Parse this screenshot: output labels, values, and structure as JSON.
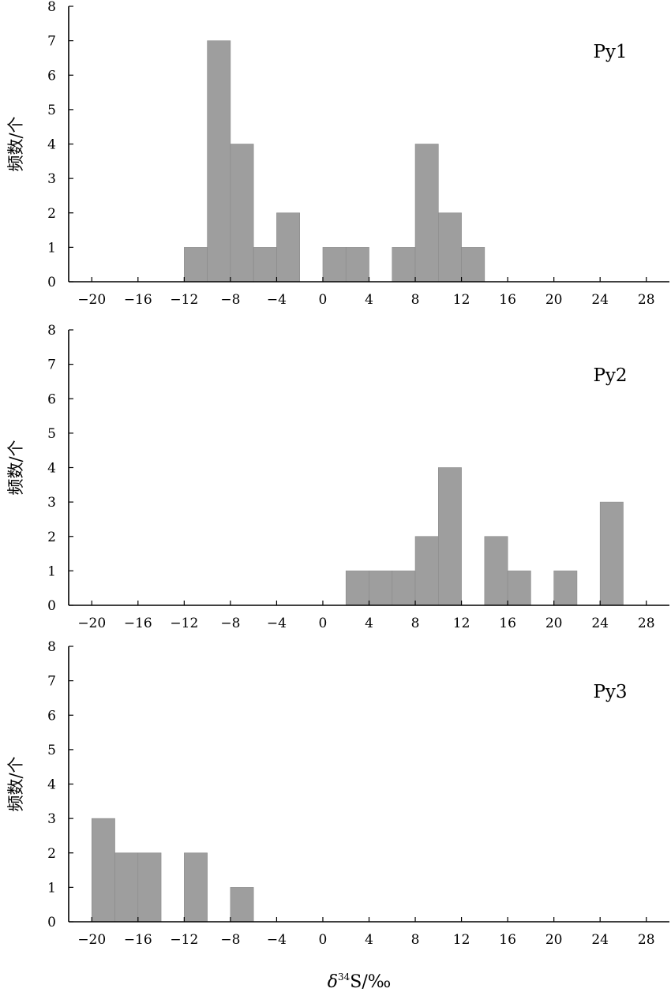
{
  "chart_data": [
    {
      "type": "bar",
      "label": "Py1",
      "ylabel": "频数/个",
      "xlim": [
        -22,
        30
      ],
      "ylim": [
        0,
        8
      ],
      "bin_width": 2,
      "xticks": [
        "−20",
        "−16",
        "−12",
        "−8",
        "−4",
        "0",
        "4",
        "8",
        "12",
        "16",
        "20",
        "24",
        "28"
      ],
      "yticks": [
        "0",
        "1",
        "2",
        "3",
        "4",
        "5",
        "6",
        "7",
        "8"
      ],
      "bins": [
        {
          "x0": -12,
          "x1": -10,
          "count": 1
        },
        {
          "x0": -10,
          "x1": -8,
          "count": 7
        },
        {
          "x0": -8,
          "x1": -6,
          "count": 4
        },
        {
          "x0": -6,
          "x1": -4,
          "count": 1
        },
        {
          "x0": -4,
          "x1": -2,
          "count": 2
        },
        {
          "x0": 0,
          "x1": 2,
          "count": 1
        },
        {
          "x0": 2,
          "x1": 4,
          "count": 1
        },
        {
          "x0": 6,
          "x1": 8,
          "count": 1
        },
        {
          "x0": 8,
          "x1": 10,
          "count": 4
        },
        {
          "x0": 10,
          "x1": 12,
          "count": 2
        },
        {
          "x0": 12,
          "x1": 14,
          "count": 1
        }
      ]
    },
    {
      "type": "bar",
      "label": "Py2",
      "ylabel": "频数/个",
      "xlim": [
        -22,
        30
      ],
      "ylim": [
        0,
        8
      ],
      "bin_width": 2,
      "xticks": [
        "−20",
        "−16",
        "−12",
        "−8",
        "−4",
        "0",
        "4",
        "8",
        "12",
        "16",
        "20",
        "24",
        "28"
      ],
      "yticks": [
        "0",
        "1",
        "2",
        "3",
        "4",
        "5",
        "6",
        "7",
        "8"
      ],
      "bins": [
        {
          "x0": 2,
          "x1": 4,
          "count": 1
        },
        {
          "x0": 4,
          "x1": 6,
          "count": 1
        },
        {
          "x0": 6,
          "x1": 8,
          "count": 1
        },
        {
          "x0": 8,
          "x1": 10,
          "count": 2
        },
        {
          "x0": 10,
          "x1": 12,
          "count": 4
        },
        {
          "x0": 14,
          "x1": 16,
          "count": 2
        },
        {
          "x0": 16,
          "x1": 18,
          "count": 1
        },
        {
          "x0": 20,
          "x1": 22,
          "count": 1
        },
        {
          "x0": 24,
          "x1": 26,
          "count": 3
        }
      ]
    },
    {
      "type": "bar",
      "label": "Py3",
      "ylabel": "频数/个",
      "xlim": [
        -22,
        30
      ],
      "ylim": [
        0,
        8
      ],
      "bin_width": 2,
      "xticks": [
        "−20",
        "−16",
        "−12",
        "−8",
        "−4",
        "0",
        "4",
        "8",
        "12",
        "16",
        "20",
        "24",
        "28"
      ],
      "yticks": [
        "0",
        "1",
        "2",
        "3",
        "4",
        "5",
        "6",
        "7",
        "8"
      ],
      "bins": [
        {
          "x0": -20,
          "x1": -18,
          "count": 3
        },
        {
          "x0": -18,
          "x1": -16,
          "count": 2
        },
        {
          "x0": -16,
          "x1": -14,
          "count": 2
        },
        {
          "x0": -12,
          "x1": -10,
          "count": 2
        },
        {
          "x0": -8,
          "x1": -6,
          "count": 1
        }
      ]
    }
  ],
  "xlabel": {
    "prefix": "δ",
    "superscript": "34",
    "suffix": "S/‰"
  }
}
